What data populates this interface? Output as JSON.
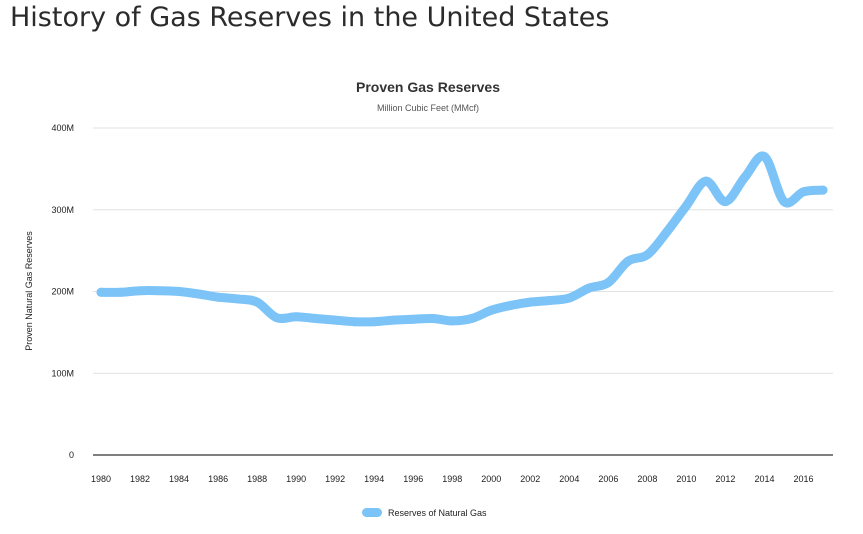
{
  "page": {
    "title": "History of Gas Reserves in the United States"
  },
  "chart_data": {
    "type": "line",
    "title": "Proven Gas Reserves",
    "subtitle": "Million Cubic Feet (MMcf)",
    "xlabel": "",
    "ylabel": "Proven Natural Gas Reserves",
    "ylim": [
      0,
      400
    ],
    "y_ticks": [
      "0",
      "100M",
      "200M",
      "300M",
      "400M"
    ],
    "y_tick_values": [
      0,
      100,
      200,
      300,
      400
    ],
    "x_ticks": [
      "1980",
      "1982",
      "1984",
      "1986",
      "1988",
      "1990",
      "1992",
      "1994",
      "1996",
      "1998",
      "2000",
      "2002",
      "2004",
      "2006",
      "2008",
      "2010",
      "2012",
      "2014",
      "2016"
    ],
    "x_tick_values": [
      1980,
      1982,
      1984,
      1986,
      1988,
      1990,
      1992,
      1994,
      1996,
      1998,
      2000,
      2002,
      2004,
      2006,
      2008,
      2010,
      2012,
      2014,
      2016
    ],
    "xlim": [
      1980,
      2017
    ],
    "grid": true,
    "legend_position": "bottom",
    "series": [
      {
        "name": "Reserves of Natural Gas",
        "color": "#7cc3f7",
        "x": [
          1980,
          1981,
          1982,
          1983,
          1984,
          1985,
          1986,
          1987,
          1988,
          1989,
          1990,
          1991,
          1992,
          1993,
          1994,
          1995,
          1996,
          1997,
          1998,
          1999,
          2000,
          2001,
          2002,
          2003,
          2004,
          2005,
          2006,
          2007,
          2008,
          2009,
          2010,
          2011,
          2012,
          2013,
          2014,
          2015,
          2016,
          2017
        ],
        "values": [
          199,
          199,
          201,
          201,
          200,
          197,
          193,
          191,
          187,
          168,
          169,
          167,
          165,
          163,
          163,
          165,
          166,
          167,
          164,
          167,
          177,
          183,
          187,
          189,
          192,
          204,
          211,
          237,
          245,
          273,
          305,
          335,
          310,
          340,
          365,
          310,
          322,
          324
        ]
      }
    ]
  }
}
